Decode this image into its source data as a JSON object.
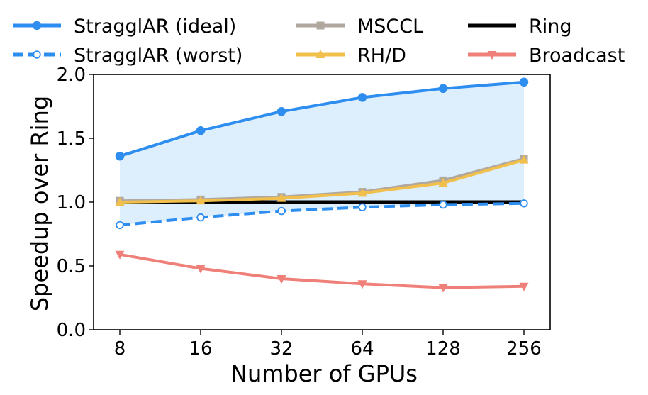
{
  "chart_data": {
    "type": "line",
    "title": "",
    "xlabel": "Number of GPUs",
    "ylabel": "Speedup over Ring",
    "categories": [
      "8",
      "16",
      "32",
      "64",
      "128",
      "256"
    ],
    "ylim": [
      0.0,
      2.0
    ],
    "yticks": [
      "0.0",
      "0.5",
      "1.0",
      "1.5",
      "2.0"
    ],
    "shaded_region": {
      "between": [
        "StragglAR (worst)",
        "StragglAR (ideal)"
      ],
      "color": "#ddeefc"
    },
    "legend_position": "top",
    "series": [
      {
        "name": "StragglAR (ideal)",
        "values": [
          1.36,
          1.56,
          1.71,
          1.82,
          1.89,
          1.94
        ],
        "color": "#2e8ef0",
        "style": "solid",
        "marker": "circle-filled"
      },
      {
        "name": "StragglAR (worst)",
        "values": [
          0.82,
          0.88,
          0.93,
          0.96,
          0.98,
          0.99
        ],
        "color": "#2e8ef0",
        "style": "dashed",
        "marker": "circle-open"
      },
      {
        "name": "MSCCL",
        "values": [
          1.01,
          1.02,
          1.04,
          1.08,
          1.17,
          1.34
        ],
        "color": "#b0a79e",
        "style": "solid",
        "marker": "square"
      },
      {
        "name": "RH/D",
        "values": [
          1.0,
          1.01,
          1.03,
          1.07,
          1.15,
          1.33
        ],
        "color": "#f0bf4c",
        "style": "solid",
        "marker": "triangle-up"
      },
      {
        "name": "Ring",
        "values": [
          1.0,
          1.0,
          1.0,
          1.0,
          1.0,
          1.0
        ],
        "color": "#000000",
        "style": "solid",
        "marker": "none"
      },
      {
        "name": "Broadcast",
        "values": [
          0.59,
          0.48,
          0.4,
          0.36,
          0.33,
          0.34
        ],
        "color": "#ef8079",
        "style": "solid",
        "marker": "triangle-down"
      }
    ]
  }
}
